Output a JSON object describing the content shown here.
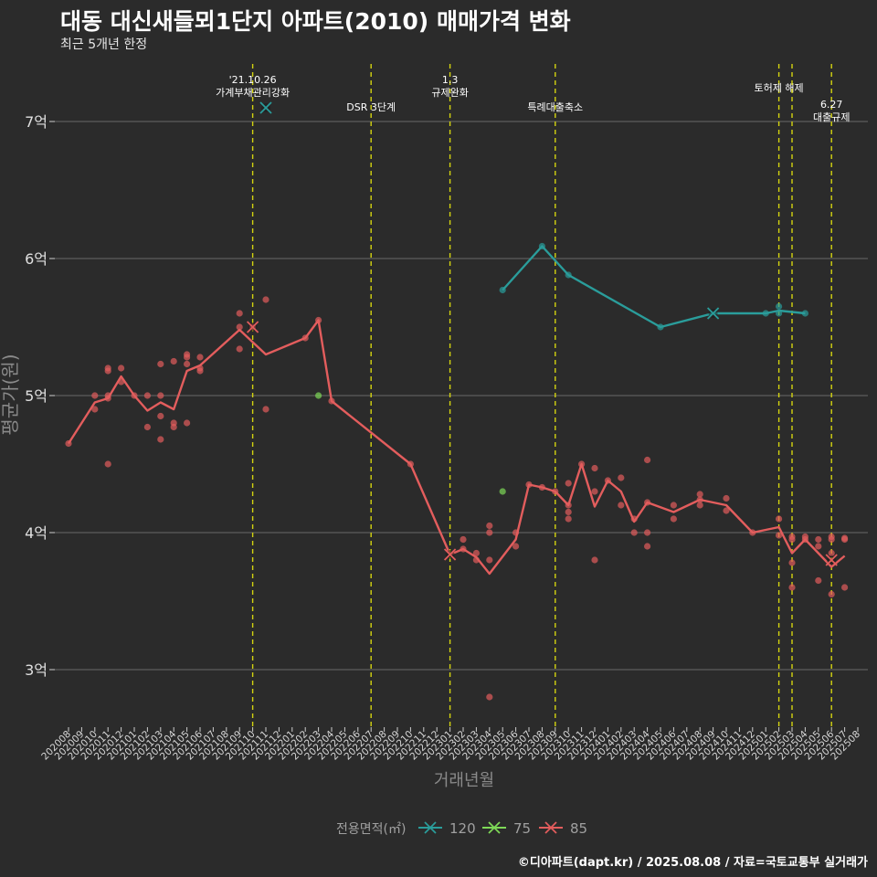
{
  "title": "대동 대신새들뫼1단지 아파트(2010) 매매가격 변화",
  "subtitle": "최근 5개년 한정",
  "caption": "©디아파트(dapt.kr) / 2025.08.08 / 자료=국토교통부 실거래가",
  "colors": {
    "120": "#2a9d9b",
    "75": "#7ed957",
    "85": "#e35d5d",
    "event_line": "#d4d40f"
  },
  "chart_data": {
    "type": "line",
    "xlabel": "거래년월",
    "ylabel": "평균가(원)",
    "ylim": [
      2.6,
      7.4
    ],
    "yticks": [
      {
        "value": 3,
        "label": "3억"
      },
      {
        "value": 4,
        "label": "4억"
      },
      {
        "value": 5,
        "label": "5억"
      },
      {
        "value": 6,
        "label": "6억"
      },
      {
        "value": 7,
        "label": "7억"
      }
    ],
    "xticks": [
      "202008",
      "202009",
      "202010",
      "202011",
      "202012",
      "202101",
      "202102",
      "202103",
      "202104",
      "202105",
      "202106",
      "202107",
      "202108",
      "202109",
      "202110",
      "202111",
      "202112",
      "202201",
      "202202",
      "202203",
      "202204",
      "202205",
      "202206",
      "202207",
      "202208",
      "202209",
      "202210",
      "202211",
      "202212",
      "202301",
      "202302",
      "202303",
      "202304",
      "202305",
      "202306",
      "202307",
      "202308",
      "202309",
      "202310",
      "202311",
      "202312",
      "202401",
      "202402",
      "202403",
      "202404",
      "202405",
      "202406",
      "202407",
      "202408",
      "202409",
      "202410",
      "202411",
      "202412",
      "202501",
      "202502",
      "202503",
      "202504",
      "202505",
      "202506",
      "202507",
      "202508"
    ],
    "legend": {
      "title": "전용면적(㎡)",
      "position": "bottom",
      "entries": [
        "120",
        "75",
        "85"
      ]
    },
    "grid": true,
    "events": [
      {
        "x": 14.0,
        "label": "'21.10.26\n가계부채관리강화",
        "label_y": 7.28
      },
      {
        "x": 23.0,
        "label": "DSR 3단계",
        "label_y": 7.08
      },
      {
        "x": 29.0,
        "label": "1.3\n규제완화",
        "label_y": 7.28
      },
      {
        "x": 37.0,
        "label": "특례대출축소",
        "label_y": 7.08
      },
      {
        "x": 54.0,
        "label": "토허제 해제",
        "label_y": 7.22
      },
      {
        "x": 55.0,
        "label": "",
        "label_y": 7.0
      },
      {
        "x": 58.0,
        "label": "6.27\n대출규제",
        "label_y": 7.1
      }
    ],
    "series": [
      {
        "name": "120",
        "line": [
          [
            33,
            5.77
          ],
          [
            36,
            6.09
          ],
          [
            38,
            5.88
          ],
          [
            45,
            5.5
          ],
          [
            49,
            5.6
          ],
          [
            53,
            5.6
          ],
          [
            54,
            5.62
          ],
          [
            56,
            5.6
          ]
        ],
        "points": [
          [
            33,
            5.77
          ],
          [
            36,
            6.09
          ],
          [
            38,
            5.88
          ],
          [
            45,
            5.5
          ],
          [
            53,
            5.6
          ],
          [
            54,
            5.65
          ],
          [
            54,
            5.6
          ],
          [
            56,
            5.6
          ]
        ],
        "markers": [
          [
            15,
            7.1
          ],
          [
            49,
            5.6
          ]
        ]
      },
      {
        "name": "75",
        "line": [],
        "points": [
          [
            19,
            5.0
          ],
          [
            33,
            4.3
          ]
        ],
        "markers": []
      },
      {
        "name": "85",
        "line": [
          [
            0,
            4.65
          ],
          [
            2,
            4.95
          ],
          [
            3,
            4.98
          ],
          [
            4,
            5.14
          ],
          [
            5,
            5.0
          ],
          [
            6,
            4.89
          ],
          [
            7,
            4.95
          ],
          [
            8,
            4.9
          ],
          [
            9,
            5.18
          ],
          [
            10,
            5.22
          ],
          [
            13,
            5.48
          ],
          [
            15,
            5.3
          ],
          [
            18,
            5.42
          ],
          [
            19,
            5.55
          ],
          [
            20,
            4.96
          ],
          [
            26,
            4.5
          ],
          [
            29,
            3.84
          ],
          [
            30,
            3.88
          ],
          [
            31,
            3.82
          ],
          [
            32,
            3.7
          ],
          [
            34,
            3.95
          ],
          [
            35,
            4.35
          ],
          [
            36,
            4.33
          ],
          [
            37,
            4.3
          ],
          [
            38,
            4.2
          ],
          [
            39,
            4.5
          ],
          [
            40,
            4.19
          ],
          [
            41,
            4.38
          ],
          [
            42,
            4.3
          ],
          [
            43,
            4.08
          ],
          [
            44,
            4.22
          ],
          [
            46,
            4.15
          ],
          [
            48,
            4.24
          ],
          [
            50,
            4.2
          ],
          [
            52,
            4.0
          ],
          [
            54,
            4.04
          ],
          [
            55,
            3.85
          ],
          [
            56,
            3.95
          ],
          [
            57,
            3.85
          ],
          [
            58,
            3.75
          ],
          [
            59,
            3.83
          ]
        ],
        "points": [
          [
            0,
            4.65
          ],
          [
            2,
            5.0
          ],
          [
            2,
            4.9
          ],
          [
            3,
            5.2
          ],
          [
            3,
            5.18
          ],
          [
            3,
            5.0
          ],
          [
            3,
            4.98
          ],
          [
            3,
            4.5
          ],
          [
            4,
            5.2
          ],
          [
            4,
            5.1
          ],
          [
            5,
            5.0
          ],
          [
            6,
            4.77
          ],
          [
            6,
            5.0
          ],
          [
            7,
            5.23
          ],
          [
            7,
            5.0
          ],
          [
            7,
            4.85
          ],
          [
            7,
            4.68
          ],
          [
            8,
            4.8
          ],
          [
            8,
            4.77
          ],
          [
            8,
            5.25
          ],
          [
            9,
            5.3
          ],
          [
            9,
            5.28
          ],
          [
            9,
            5.23
          ],
          [
            9,
            4.8
          ],
          [
            10,
            5.28
          ],
          [
            10,
            5.2
          ],
          [
            10,
            5.18
          ],
          [
            13,
            5.6
          ],
          [
            13,
            5.5
          ],
          [
            13,
            5.34
          ],
          [
            14,
            5.5
          ],
          [
            15,
            5.7
          ],
          [
            15,
            4.9
          ],
          [
            18,
            5.42
          ],
          [
            19,
            5.55
          ],
          [
            20,
            4.96
          ],
          [
            26,
            4.5
          ],
          [
            30,
            3.95
          ],
          [
            30,
            3.88
          ],
          [
            31,
            3.85
          ],
          [
            31,
            3.8
          ],
          [
            32,
            4.05
          ],
          [
            32,
            4.0
          ],
          [
            32,
            3.8
          ],
          [
            32,
            2.8
          ],
          [
            34,
            4.0
          ],
          [
            34,
            3.9
          ],
          [
            35,
            4.35
          ],
          [
            36,
            4.33
          ],
          [
            37,
            4.3
          ],
          [
            38,
            4.36
          ],
          [
            38,
            4.2
          ],
          [
            38,
            4.15
          ],
          [
            38,
            4.1
          ],
          [
            39,
            4.5
          ],
          [
            40,
            4.47
          ],
          [
            40,
            4.3
          ],
          [
            40,
            3.8
          ],
          [
            41,
            4.38
          ],
          [
            42,
            4.4
          ],
          [
            42,
            4.2
          ],
          [
            43,
            4.1
          ],
          [
            43,
            4.0
          ],
          [
            44,
            4.53
          ],
          [
            44,
            4.22
          ],
          [
            44,
            4.0
          ],
          [
            44,
            3.9
          ],
          [
            46,
            4.2
          ],
          [
            46,
            4.1
          ],
          [
            48,
            4.28
          ],
          [
            48,
            4.24
          ],
          [
            48,
            4.2
          ],
          [
            50,
            4.25
          ],
          [
            50,
            4.16
          ],
          [
            52,
            4.0
          ],
          [
            54,
            4.1
          ],
          [
            54,
            3.98
          ],
          [
            55,
            3.97
          ],
          [
            55,
            3.95
          ],
          [
            55,
            3.78
          ],
          [
            55,
            3.6
          ],
          [
            56,
            3.97
          ],
          [
            56,
            3.95
          ],
          [
            57,
            3.95
          ],
          [
            57,
            3.9
          ],
          [
            57,
            3.65
          ],
          [
            58,
            3.97
          ],
          [
            58,
            3.95
          ],
          [
            58,
            3.85
          ],
          [
            58,
            3.55
          ],
          [
            59,
            3.96
          ],
          [
            59,
            3.95
          ],
          [
            59,
            3.6
          ]
        ],
        "markers": [
          [
            14,
            5.5
          ],
          [
            29,
            3.84
          ],
          [
            58,
            3.8
          ]
        ]
      }
    ]
  }
}
